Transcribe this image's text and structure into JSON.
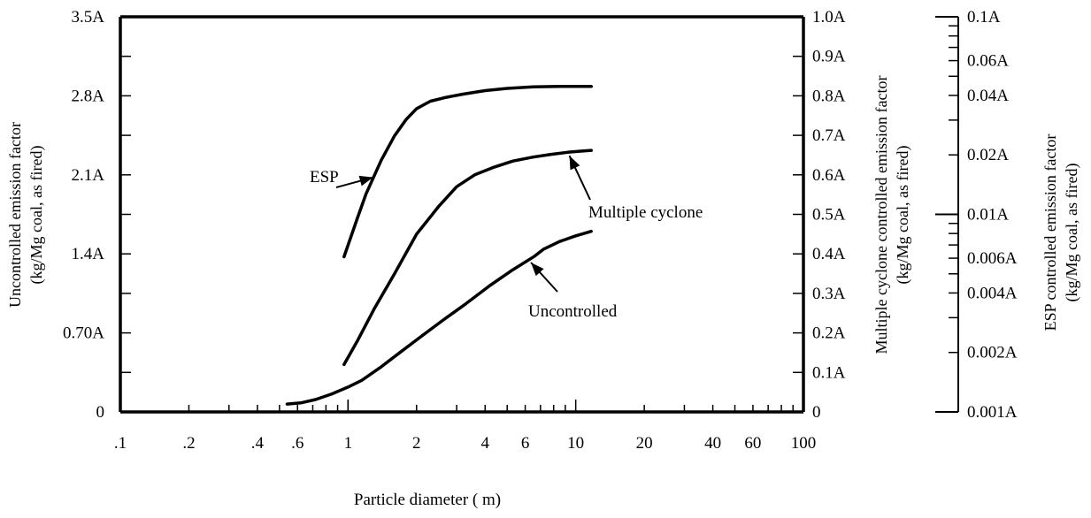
{
  "chart_data": {
    "type": "line",
    "title": "",
    "xlabel": "Particle diameter (  m)",
    "xscale": "log",
    "xlim": [
      0.1,
      100
    ],
    "x_tick_labels": [
      ".1",
      ".2",
      ".4",
      ".6",
      "1",
      "2",
      "4",
      "6",
      "10",
      "20",
      "40",
      "60",
      "100"
    ],
    "x_tick_values": [
      0.1,
      0.2,
      0.4,
      0.6,
      1,
      2,
      4,
      6,
      10,
      20,
      40,
      60,
      100
    ],
    "y_axes": {
      "left": {
        "label_line1": "Uncontrolled emission factor",
        "label_line2": "(kg/Mg coal, as fired)",
        "ylim": [
          0,
          3.5
        ],
        "tick_labels": [
          "0",
          "0.70A",
          "1.4A",
          "2.1A",
          "2.8A",
          "3.5A"
        ]
      },
      "right1": {
        "label_line1": "Multiple cyclone controlled emission factor",
        "label_line2": "(kg/Mg coal, as fired)",
        "ylim": [
          0,
          1.0
        ],
        "tick_labels": [
          "0",
          "0.1A",
          "0.2A",
          "0.3A",
          "0.4A",
          "0.5A",
          "0.6A",
          "0.7A",
          "0.8A",
          "0.9A",
          "1.0A"
        ]
      },
      "right2": {
        "label_line1": "ESP controlled emission factor",
        "label_line2": "(kg/Mg coal, as fired)",
        "scale": "log",
        "ylim": [
          0.001,
          0.1
        ],
        "tick_labels": [
          "0.001A",
          "0.002A",
          "0.004A",
          "0.006A",
          "0.01A",
          "0.02A",
          "0.04A",
          "0.06A",
          "0.1A"
        ],
        "tick_values": [
          0.001,
          0.002,
          0.004,
          0.006,
          0.01,
          0.02,
          0.04,
          0.06,
          0.1
        ]
      }
    },
    "series": [
      {
        "name": "Uncontrolled",
        "axis": "left",
        "x": [
          0.54,
          0.62,
          0.72,
          0.85,
          1.0,
          1.15,
          1.4,
          1.7,
          2.1,
          2.6,
          3.3,
          4.2,
          5.3,
          6.6,
          7.2,
          8.5,
          10.0,
          11.7
        ],
        "y": [
          0.07,
          0.08,
          0.11,
          0.16,
          0.22,
          0.28,
          0.4,
          0.53,
          0.67,
          0.81,
          0.96,
          1.12,
          1.26,
          1.38,
          1.44,
          1.51,
          1.56,
          1.6
        ]
      },
      {
        "name": "Multiple cyclone",
        "axis": "right1",
        "x": [
          0.96,
          1.1,
          1.3,
          1.6,
          2.0,
          2.5,
          3.0,
          3.6,
          4.4,
          5.3,
          6.5,
          7.8,
          9.2,
          10.5,
          11.7
        ],
        "y": [
          0.12,
          0.18,
          0.26,
          0.35,
          0.45,
          0.52,
          0.57,
          0.6,
          0.62,
          0.635,
          0.645,
          0.652,
          0.657,
          0.66,
          0.662
        ]
      },
      {
        "name": "ESP",
        "axis": "right2",
        "x": [
          0.96,
          1.1,
          1.2,
          1.4,
          1.6,
          1.8,
          2.0,
          2.3,
          2.7,
          3.2,
          4.0,
          5.0,
          6.5,
          8.5,
          11.7
        ],
        "y": [
          0.0061,
          0.0096,
          0.0127,
          0.0188,
          0.025,
          0.0302,
          0.0343,
          0.0374,
          0.0391,
          0.0406,
          0.0423,
          0.0434,
          0.0442,
          0.0444,
          0.0444
        ]
      }
    ],
    "annotations": [
      {
        "text": "ESP",
        "series": "ESP"
      },
      {
        "text": "Multiple cyclone",
        "series": "Multiple cyclone"
      },
      {
        "text": "Uncontrolled",
        "series": "Uncontrolled"
      }
    ],
    "grid": false,
    "legend": "none"
  }
}
